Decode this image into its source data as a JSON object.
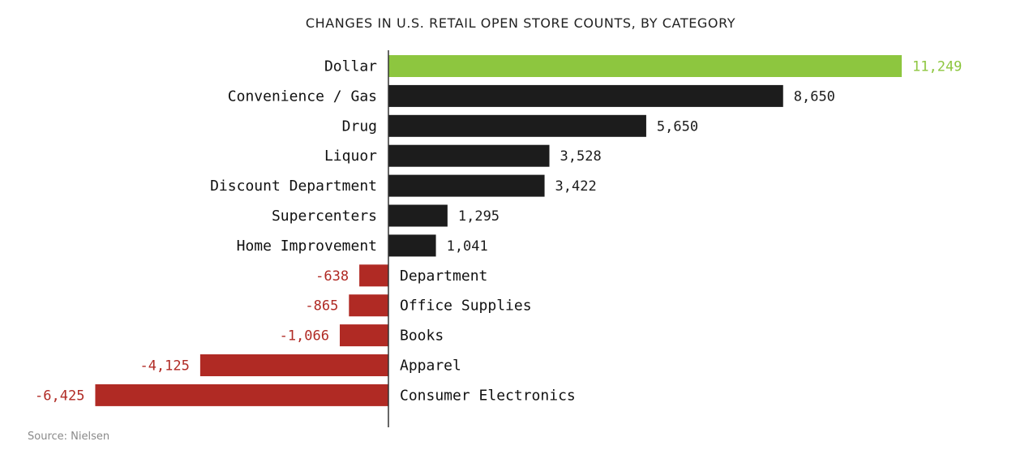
{
  "chart_data": {
    "type": "bar",
    "orientation": "horizontal",
    "title": "CHANGES IN U.S. RETAIL OPEN STORE COUNTS, BY CATEGORY",
    "categories": [
      "Dollar",
      "Convenience / Gas",
      "Drug",
      "Liquor",
      "Discount Department",
      "Supercenters",
      "Home Improvement",
      "Department",
      "Office Supplies",
      "Books",
      "Apparel",
      "Consumer Electronics"
    ],
    "values": [
      11249,
      8650,
      5650,
      3528,
      3422,
      1295,
      1041,
      -638,
      -865,
      -1066,
      -4125,
      -6425
    ],
    "value_labels": [
      "11,249",
      "8,650",
      "5,650",
      "3,528",
      "3,422",
      "1,295",
      "1,041",
      "-638",
      "-865",
      "-1,066",
      "-4,125",
      "-6,425"
    ],
    "highlight_category": "Dollar",
    "xlim": [
      -7650,
      11249
    ],
    "grid": false,
    "legend": "none",
    "source": "Source: Nielsen"
  },
  "colors": {
    "highlight": "#8dc63f",
    "positive": "#1c1c1c",
    "negative": "#b02a24",
    "axis": "#333333"
  }
}
